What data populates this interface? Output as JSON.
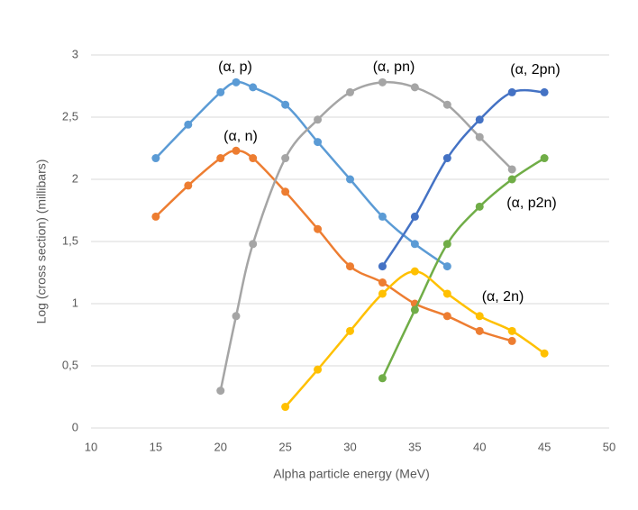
{
  "chart_data": {
    "type": "line",
    "xlabel": "Alpha particle energy (MeV)",
    "ylabel": "Log (cross section) (millibars)",
    "xlim": [
      10,
      50
    ],
    "xticks": [
      10,
      15,
      20,
      25,
      30,
      35,
      40,
      45,
      50
    ],
    "ylim": [
      0,
      3
    ],
    "yticks": [
      0,
      {
        "value": 0.5,
        "label": "0,5"
      },
      1,
      {
        "value": 1.5,
        "label": "1,5"
      },
      2,
      {
        "value": 2.5,
        "label": "2,5"
      },
      3
    ],
    "grid": true,
    "series": [
      {
        "name": "(α, p)",
        "color": "#5b9bd5",
        "x": [
          15,
          17.5,
          20,
          21.2,
          22.5,
          25,
          27.5,
          30,
          32.5,
          35,
          37.5
        ],
        "values": [
          2.17,
          2.44,
          2.7,
          2.78,
          2.74,
          2.6,
          2.3,
          2.0,
          1.7,
          1.48,
          1.3
        ]
      },
      {
        "name": "(α, n)",
        "color": "#ed7d31",
        "x": [
          15,
          17.5,
          20,
          21.2,
          22.5,
          25,
          27.5,
          30,
          32.5,
          35,
          37.5,
          40,
          42.5
        ],
        "values": [
          1.7,
          1.95,
          2.17,
          2.23,
          2.17,
          1.9,
          1.6,
          1.3,
          1.17,
          1.0,
          0.9,
          0.78,
          0.7
        ]
      },
      {
        "name": "(α, pn)",
        "color": "#a5a5a5",
        "x": [
          20,
          21.2,
          22.5,
          25,
          27.5,
          30,
          32.5,
          35,
          37.5,
          40,
          42.5
        ],
        "values": [
          0.3,
          0.9,
          1.48,
          2.17,
          2.48,
          2.7,
          2.78,
          2.74,
          2.6,
          2.34,
          2.08
        ]
      },
      {
        "name": "(α, 2pn)",
        "color": "#4472c4",
        "x": [
          32.5,
          35,
          37.5,
          40,
          42.5,
          45
        ],
        "values": [
          1.3,
          1.7,
          2.17,
          2.48,
          2.7,
          2.7
        ]
      },
      {
        "name": "(α, p2n)",
        "color": "#70ad47",
        "x": [
          32.5,
          35,
          37.5,
          40,
          42.5,
          45
        ],
        "values": [
          0.4,
          0.95,
          1.48,
          1.78,
          2.0,
          2.17
        ]
      },
      {
        "name": "(α, 2n)",
        "color": "#ffc000",
        "x": [
          25,
          27.5,
          30,
          32.5,
          35,
          37.5,
          40,
          42.5,
          45
        ],
        "values": [
          0.17,
          0.47,
          0.78,
          1.08,
          1.26,
          1.08,
          0.9,
          0.78,
          0.6
        ]
      }
    ]
  }
}
